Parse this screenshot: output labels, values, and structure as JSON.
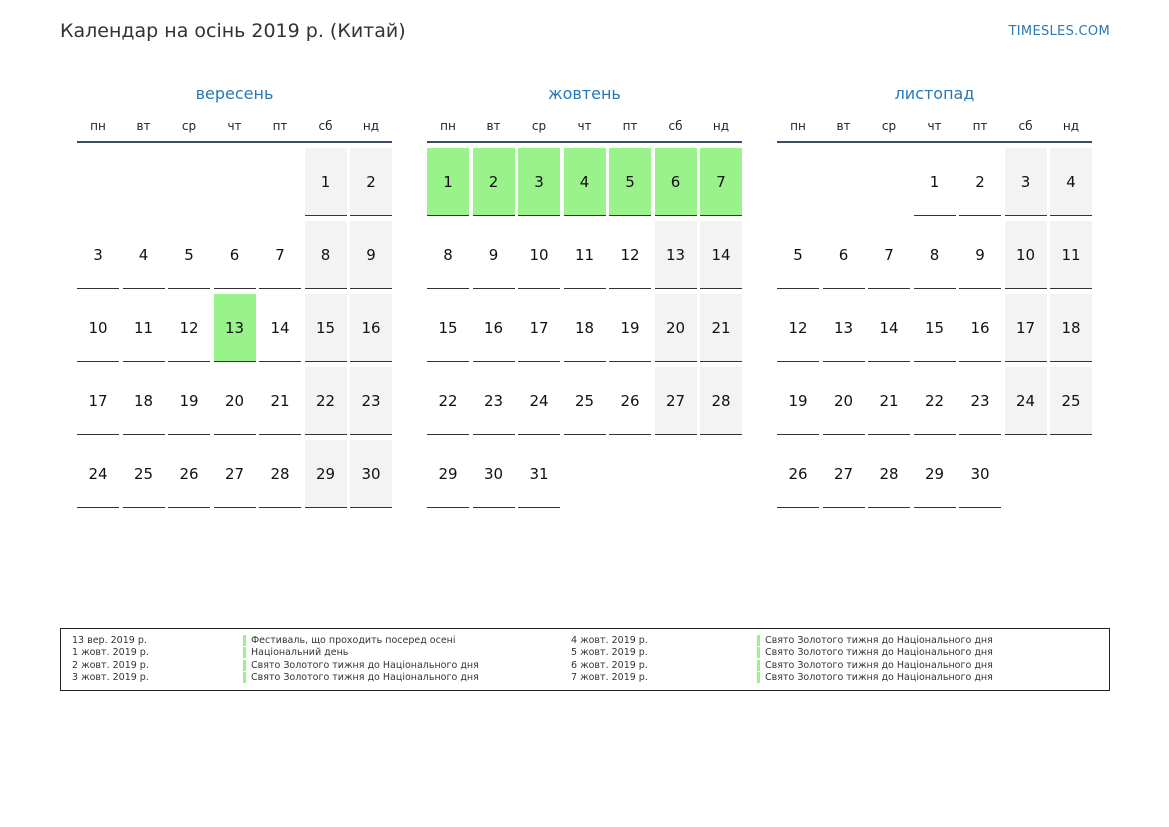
{
  "header": {
    "title": "Календар на осінь 2019 р. (Китай)",
    "site": "TIMESLES.COM"
  },
  "colors": {
    "accent": "#2a78b5",
    "holiday": "#99f38a",
    "weekend": "#f3f3f3"
  },
  "weekdays": [
    "пн",
    "вт",
    "ср",
    "чт",
    "пт",
    "сб",
    "нд"
  ],
  "months": [
    {
      "name": "вересень",
      "first_weekday": 6,
      "days": 30,
      "holidays": [
        13
      ]
    },
    {
      "name": "жовтень",
      "first_weekday": 1,
      "days": 31,
      "holidays": [
        1,
        2,
        3,
        4,
        5,
        6,
        7
      ]
    },
    {
      "name": "листопад",
      "first_weekday": 4,
      "days": 30,
      "holidays": []
    }
  ],
  "legend": [
    {
      "date": "13 вер. 2019 р.",
      "name": "Фестиваль, що проходить посеред осені"
    },
    {
      "date": "1 жовт. 2019 р.",
      "name": "Національний день"
    },
    {
      "date": "2 жовт. 2019 р.",
      "name": "Свято Золотого тижня до Національного дня"
    },
    {
      "date": "3 жовт. 2019 р.",
      "name": "Свято Золотого тижня до Національного дня"
    },
    {
      "date": "4 жовт. 2019 р.",
      "name": "Свято Золотого тижня до Національного дня"
    },
    {
      "date": "5 жовт. 2019 р.",
      "name": "Свято Золотого тижня до Національного дня"
    },
    {
      "date": "6 жовт. 2019 р.",
      "name": "Свято Золотого тижня до Національного дня"
    },
    {
      "date": "7 жовт. 2019 р.",
      "name": "Свято Золотого тижня до Національного дня"
    }
  ]
}
